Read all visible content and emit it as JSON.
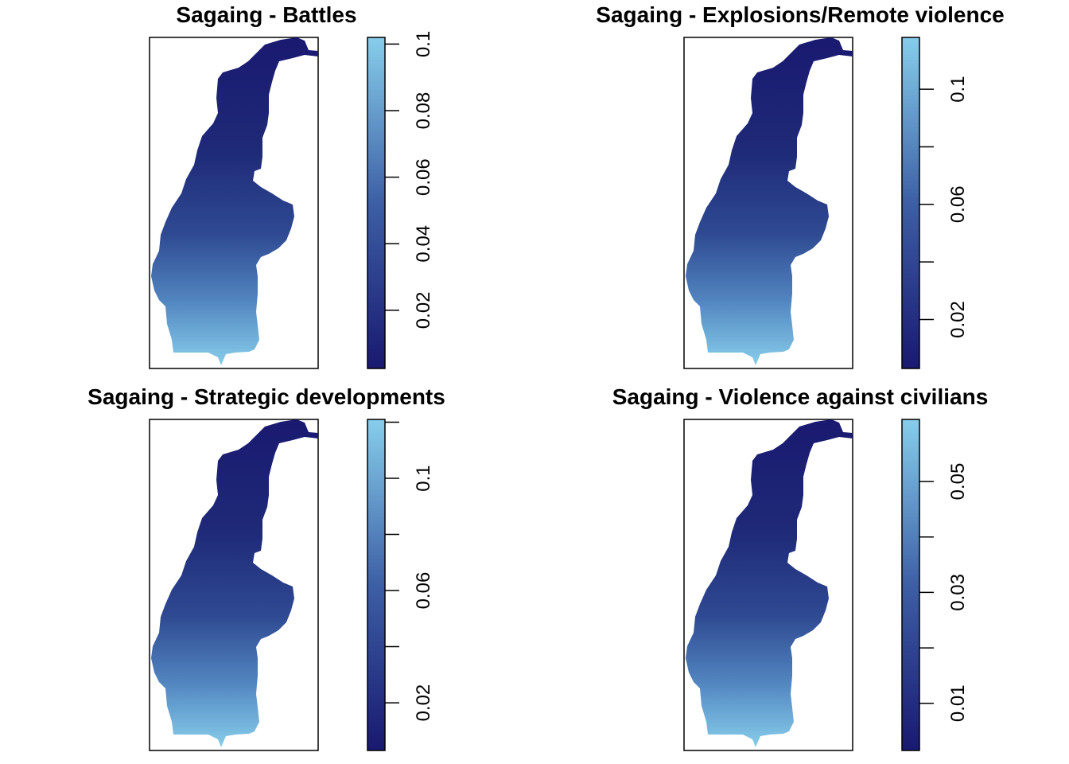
{
  "chart_data": [
    {
      "type": "heatmap",
      "title": "Sagaing -  Battles",
      "colorbar": {
        "ticks": [
          0.02,
          0.04,
          0.06,
          0.08,
          0.1
        ],
        "range": [
          0.0025,
          0.102
        ]
      },
      "color_low": "#191970",
      "color_high": "#87CEEB",
      "gradient": "north-to-south increasing"
    },
    {
      "type": "heatmap",
      "title": "Sagaing -  Explosions/Remote violence",
      "colorbar": {
        "ticks": [
          0.02,
          0.04,
          0.06,
          0.08,
          0.1
        ],
        "labeled_ticks": [
          0.02,
          0.06,
          0.1
        ],
        "range": [
          0.003,
          0.118
        ]
      },
      "color_low": "#191970",
      "color_high": "#87CEEB",
      "gradient": "north-to-south increasing"
    },
    {
      "type": "heatmap",
      "title": "Sagaing -  Strategic developments",
      "colorbar": {
        "ticks": [
          0.02,
          0.04,
          0.06,
          0.08,
          0.1,
          0.12
        ],
        "labeled_ticks": [
          0.02,
          0.06,
          0.1
        ],
        "range": [
          0.003,
          0.121
        ]
      },
      "color_low": "#191970",
      "color_high": "#87CEEB",
      "gradient": "north-to-south increasing"
    },
    {
      "type": "heatmap",
      "title": "Sagaing -  Violence against civilians",
      "colorbar": {
        "ticks": [
          0.01,
          0.02,
          0.03,
          0.04,
          0.05
        ],
        "labeled_ticks": [
          0.01,
          0.03,
          0.05
        ],
        "range": [
          0.0015,
          0.0612
        ]
      },
      "color_low": "#191970",
      "color_high": "#87CEEB",
      "gradient": "north-to-south increasing"
    }
  ]
}
